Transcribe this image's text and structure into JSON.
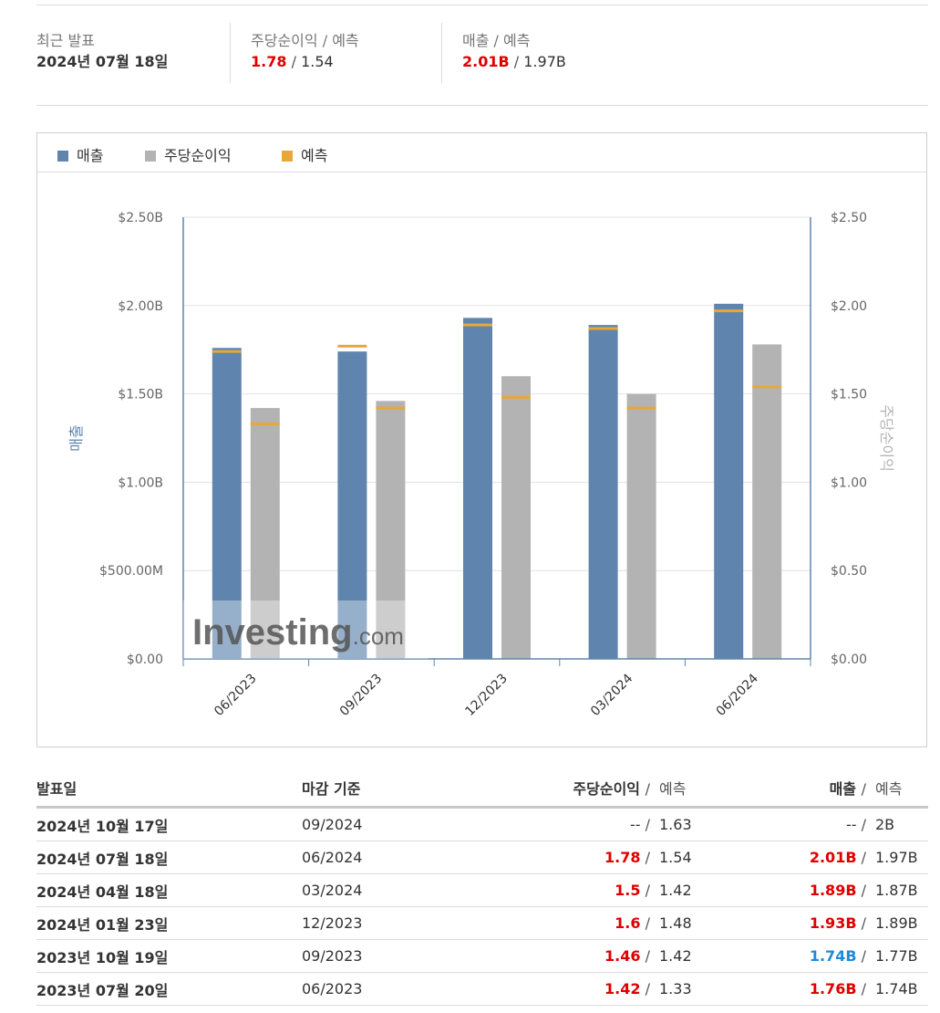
{
  "summary": {
    "release": {
      "label": "최근 발표",
      "value": "2024년 07월 18일"
    },
    "eps": {
      "label": "주당순이익",
      "sep": "/",
      "label_forecast": "예측",
      "actual": "1.78",
      "forecast": "1.54"
    },
    "revenue": {
      "label": "매출",
      "sep": "/",
      "label_forecast": "예측",
      "actual": "2.01B",
      "forecast": "1.97B"
    }
  },
  "legend": {
    "revenue": "매출",
    "eps": "주당순이익",
    "forecast": "예측"
  },
  "colors": {
    "revenue": "#5f85ae",
    "eps": "#b3b3b3",
    "forecast": "#e8a737",
    "positive": "#e00000",
    "negative": "#1e8bd9"
  },
  "watermark": {
    "main": "Investing",
    "suffix": ".com"
  },
  "chart_data": {
    "type": "bar",
    "categories": [
      "06/2023",
      "09/2023",
      "12/2023",
      "03/2024",
      "06/2024"
    ],
    "series": [
      {
        "name": "매출",
        "axis": "left",
        "values": [
          1.76,
          1.74,
          1.93,
          1.89,
          2.01
        ],
        "forecast": [
          1.74,
          1.77,
          1.89,
          1.87,
          1.97
        ]
      },
      {
        "name": "주당순이익",
        "axis": "right",
        "values": [
          1.42,
          1.46,
          1.6,
          1.5,
          1.78
        ],
        "forecast": [
          1.33,
          1.42,
          1.48,
          1.42,
          1.54
        ]
      }
    ],
    "left_axis": {
      "label": "매출",
      "ticks": [
        "$0.00",
        "$500.00M",
        "$1.00B",
        "$1.50B",
        "$2.00B",
        "$2.50B"
      ],
      "range_billions": [
        0,
        2.5
      ]
    },
    "right_axis": {
      "label": "주당순이익",
      "ticks": [
        "$0.00",
        "$0.50",
        "$1.00",
        "$1.50",
        "$2.00",
        "$2.50"
      ],
      "range": [
        0,
        2.5
      ]
    },
    "grid": true,
    "legend_position": "top-left"
  },
  "table": {
    "headers": {
      "date": "발표일",
      "period": "마감 기준",
      "eps": "주당순이익",
      "revenue": "매출",
      "sep": "/",
      "forecast": "예측"
    },
    "rows": [
      {
        "date": "2024년 10월 17일",
        "period": "09/2024",
        "eps": "--",
        "eps_forecast": "1.63",
        "eps_color": "none",
        "revenue": "--",
        "revenue_forecast": "2B",
        "revenue_color": "none"
      },
      {
        "date": "2024년 07월 18일",
        "period": "06/2024",
        "eps": "1.78",
        "eps_forecast": "1.54",
        "eps_color": "red",
        "revenue": "2.01B",
        "revenue_forecast": "1.97B",
        "revenue_color": "red"
      },
      {
        "date": "2024년 04월 18일",
        "period": "03/2024",
        "eps": "1.5",
        "eps_forecast": "1.42",
        "eps_color": "red",
        "revenue": "1.89B",
        "revenue_forecast": "1.87B",
        "revenue_color": "red"
      },
      {
        "date": "2024년 01월 23일",
        "period": "12/2023",
        "eps": "1.6",
        "eps_forecast": "1.48",
        "eps_color": "red",
        "revenue": "1.93B",
        "revenue_forecast": "1.89B",
        "revenue_color": "red"
      },
      {
        "date": "2023년 10월 19일",
        "period": "09/2023",
        "eps": "1.46",
        "eps_forecast": "1.42",
        "eps_color": "red",
        "revenue": "1.74B",
        "revenue_forecast": "1.77B",
        "revenue_color": "blue"
      },
      {
        "date": "2023년 07월 20일",
        "period": "06/2023",
        "eps": "1.42",
        "eps_forecast": "1.33",
        "eps_color": "red",
        "revenue": "1.76B",
        "revenue_forecast": "1.74B",
        "revenue_color": "red"
      }
    ]
  }
}
